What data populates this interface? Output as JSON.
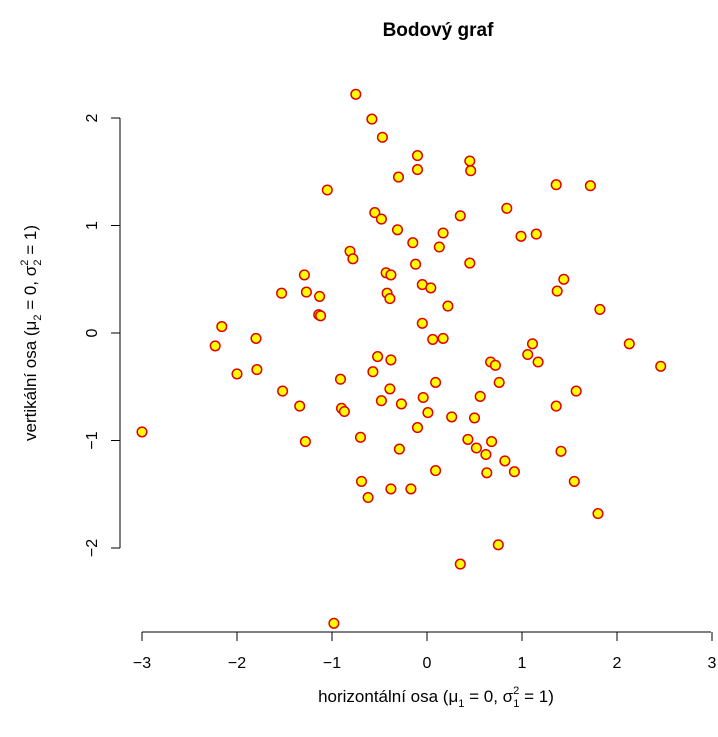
{
  "chart_data": {
    "type": "scatter",
    "title": "Bodový graf",
    "xlabel": {
      "text": "horizontální osa (",
      "mu": "μ",
      "mu_sub": "1",
      "mid": " = 0, ",
      "sigma": "σ",
      "sigma_sup": "2",
      "sigma_sub": "1",
      "end": " = 1)"
    },
    "ylabel": {
      "text": "vertikální osa (",
      "mu": "μ",
      "mu_sub": "2",
      "mid": " = 0, ",
      "sigma": "σ",
      "sigma_sup": "2",
      "sigma_sub": "2",
      "end": " = 1)"
    },
    "xticks": [
      -3,
      -2,
      -1,
      0,
      1,
      2,
      3
    ],
    "yticks": [
      -2,
      -1,
      0,
      1,
      2
    ],
    "xtick_labels": [
      "−3",
      "−2",
      "−1",
      "0",
      "1",
      "2",
      "3"
    ],
    "ytick_labels": [
      "−2",
      "−1",
      "0",
      "1",
      "2"
    ],
    "xlim": [
      -3,
      3
    ],
    "ylim": [
      -2.8,
      2.3
    ],
    "grid": false,
    "colors": {
      "point_fill": "#ffff00",
      "point_stroke": "#e00000",
      "axis": "#000000"
    },
    "points": [
      [
        -0.75,
        2.22
      ],
      [
        -0.58,
        1.99
      ],
      [
        -0.47,
        1.82
      ],
      [
        -0.1,
        1.65
      ],
      [
        0.45,
        1.6
      ],
      [
        0.46,
        1.51
      ],
      [
        -0.1,
        1.52
      ],
      [
        -0.3,
        1.45
      ],
      [
        -1.05,
        1.33
      ],
      [
        1.36,
        1.38
      ],
      [
        1.72,
        1.37
      ],
      [
        0.84,
        1.16
      ],
      [
        -0.55,
        1.12
      ],
      [
        0.35,
        1.09
      ],
      [
        -0.48,
        1.06
      ],
      [
        -0.31,
        0.96
      ],
      [
        0.17,
        0.93
      ],
      [
        1.15,
        0.92
      ],
      [
        0.99,
        0.9
      ],
      [
        -0.15,
        0.84
      ],
      [
        0.13,
        0.8
      ],
      [
        -0.81,
        0.76
      ],
      [
        -0.78,
        0.69
      ],
      [
        0.45,
        0.65
      ],
      [
        -0.12,
        0.64
      ],
      [
        -0.43,
        0.56
      ],
      [
        -0.38,
        0.54
      ],
      [
        -1.29,
        0.54
      ],
      [
        1.44,
        0.5
      ],
      [
        -0.05,
        0.45
      ],
      [
        0.04,
        0.42
      ],
      [
        1.37,
        0.39
      ],
      [
        -1.27,
        0.38
      ],
      [
        -1.53,
        0.37
      ],
      [
        -0.42,
        0.37
      ],
      [
        -0.39,
        0.32
      ],
      [
        -1.13,
        0.34
      ],
      [
        0.22,
        0.25
      ],
      [
        1.82,
        0.22
      ],
      [
        -1.14,
        0.17
      ],
      [
        -1.12,
        0.16
      ],
      [
        -0.05,
        0.09
      ],
      [
        -2.16,
        0.06
      ],
      [
        0.17,
        -0.05
      ],
      [
        0.06,
        -0.06
      ],
      [
        -1.8,
        -0.05
      ],
      [
        2.13,
        -0.1
      ],
      [
        1.11,
        -0.1
      ],
      [
        -2.23,
        -0.12
      ],
      [
        1.06,
        -0.2
      ],
      [
        -0.52,
        -0.22
      ],
      [
        -0.38,
        -0.25
      ],
      [
        0.67,
        -0.27
      ],
      [
        1.17,
        -0.27
      ],
      [
        0.72,
        -0.3
      ],
      [
        2.46,
        -0.31
      ],
      [
        -1.79,
        -0.34
      ],
      [
        -0.57,
        -0.36
      ],
      [
        -2.0,
        -0.38
      ],
      [
        -0.91,
        -0.43
      ],
      [
        0.76,
        -0.46
      ],
      [
        0.09,
        -0.46
      ],
      [
        -0.39,
        -0.52
      ],
      [
        -1.52,
        -0.54
      ],
      [
        1.57,
        -0.54
      ],
      [
        0.56,
        -0.59
      ],
      [
        -0.04,
        -0.6
      ],
      [
        -0.48,
        -0.63
      ],
      [
        -0.27,
        -0.66
      ],
      [
        1.36,
        -0.68
      ],
      [
        -1.34,
        -0.68
      ],
      [
        -0.9,
        -0.7
      ],
      [
        -0.87,
        -0.73
      ],
      [
        0.01,
        -0.74
      ],
      [
        0.5,
        -0.79
      ],
      [
        0.26,
        -0.78
      ],
      [
        -0.1,
        -0.88
      ],
      [
        -0.7,
        -0.97
      ],
      [
        0.43,
        -0.99
      ],
      [
        0.68,
        -1.01
      ],
      [
        -1.28,
        -1.01
      ],
      [
        0.52,
        -1.07
      ],
      [
        -0.29,
        -1.08
      ],
      [
        1.41,
        -1.1
      ],
      [
        0.62,
        -1.13
      ],
      [
        0.82,
        -1.19
      ],
      [
        0.09,
        -1.28
      ],
      [
        0.63,
        -1.3
      ],
      [
        0.92,
        -1.29
      ],
      [
        -0.69,
        -1.38
      ],
      [
        1.55,
        -1.38
      ],
      [
        -0.38,
        -1.45
      ],
      [
        -0.17,
        -1.45
      ],
      [
        -0.62,
        -1.53
      ],
      [
        1.8,
        -1.68
      ],
      [
        0.75,
        -1.97
      ],
      [
        0.35,
        -2.15
      ],
      [
        -3.0,
        -0.92
      ],
      [
        -0.98,
        -2.7
      ]
    ]
  }
}
